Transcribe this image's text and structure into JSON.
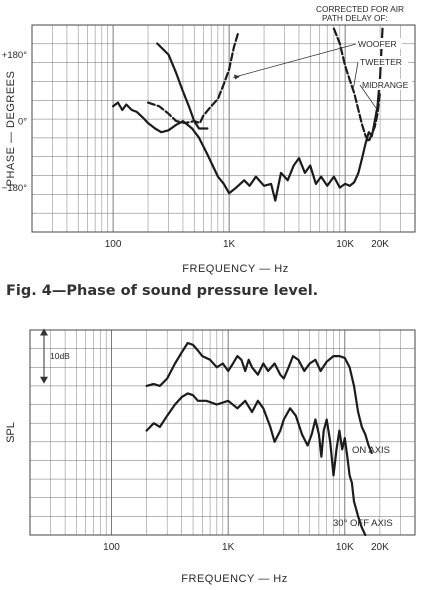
{
  "figure_caption": "Fig. 4—Phase of sound pressure level.",
  "chart_data": [
    {
      "type": "line",
      "title": "",
      "xlabel": "FREQUENCY — Hz",
      "ylabel": "PHASE — DEGREES",
      "x_scale": "log",
      "xlim": [
        20,
        40000
      ],
      "ylim": [
        -300,
        260
      ],
      "x_ticks": [
        {
          "value": 100,
          "label": "100"
        },
        {
          "value": 1000,
          "label": "1K"
        },
        {
          "value": 10000,
          "label": "10K"
        },
        {
          "value": 20000,
          "label": "20K"
        }
      ],
      "y_ticks": [
        {
          "value": 180,
          "label": "+180°"
        },
        {
          "value": 0,
          "label": "0°"
        },
        {
          "value": -180,
          "label": "−180°"
        }
      ],
      "grid": true,
      "annotations": [
        {
          "text": "CORRECTED FOR AIR"
        },
        {
          "text": "PATH DELAY OF:"
        },
        {
          "text": "WOOFER"
        },
        {
          "text": "TWEETER"
        },
        {
          "text": "MIDRANGE"
        }
      ],
      "series": [
        {
          "name": "WOOFER",
          "style": "solid",
          "points": [
            [
              100,
              40
            ],
            [
              110,
              50
            ],
            [
              120,
              30
            ],
            [
              130,
              45
            ],
            [
              145,
              30
            ],
            [
              160,
              25
            ],
            [
              180,
              10
            ],
            [
              200,
              -5
            ],
            [
              230,
              -20
            ],
            [
              260,
              -30
            ],
            [
              300,
              -25
            ],
            [
              350,
              -10
            ],
            [
              400,
              0
            ],
            [
              480,
              -20
            ],
            [
              550,
              -45
            ],
            [
              650,
              -90
            ],
            [
              800,
              -150
            ],
            [
              900,
              -170
            ],
            [
              1000,
              -195
            ],
            [
              1150,
              -180
            ],
            [
              1350,
              -160
            ],
            [
              1500,
              -175
            ],
            [
              1700,
              -150
            ],
            [
              2000,
              -175
            ],
            [
              2300,
              -170
            ],
            [
              2500,
              -215
            ],
            [
              2800,
              -140
            ],
            [
              3200,
              -160
            ],
            [
              3600,
              -120
            ],
            [
              4000,
              -100
            ],
            [
              4500,
              -140
            ],
            [
              5000,
              -120
            ],
            [
              5600,
              -170
            ],
            [
              6200,
              -150
            ],
            [
              7000,
              -175
            ],
            [
              8000,
              -150
            ],
            [
              9000,
              -180
            ],
            [
              10000,
              -170
            ],
            [
              11000,
              -175
            ],
            [
              12000,
              -165
            ],
            [
              13000,
              -140
            ],
            [
              14000,
              -100
            ],
            [
              15000,
              -60
            ],
            [
              16000,
              -30
            ],
            [
              17000,
              -40
            ],
            [
              18000,
              0
            ],
            [
              19000,
              40
            ],
            [
              20000,
              120
            ],
            [
              21000,
              250
            ]
          ]
        },
        {
          "name": "TWEETER",
          "style": "dashed",
          "points": [
            [
              8000,
              250
            ],
            [
              9000,
              210
            ],
            [
              10000,
              150
            ],
            [
              11000,
              110
            ],
            [
              12000,
              75
            ],
            [
              13000,
              30
            ],
            [
              14000,
              -10
            ],
            [
              15000,
              -40
            ],
            [
              16000,
              -55
            ],
            [
              17000,
              -35
            ],
            [
              18000,
              -15
            ],
            [
              19000,
              20
            ],
            [
              20000,
              80
            ]
          ]
        },
        {
          "name": "MIDRANGE",
          "style": "dashed",
          "points": [
            [
              200,
              50
            ],
            [
              250,
              40
            ],
            [
              300,
              20
            ],
            [
              350,
              0
            ],
            [
              420,
              -5
            ],
            [
              500,
              0
            ],
            [
              560,
              -5
            ],
            [
              600,
              15
            ],
            [
              700,
              40
            ],
            [
              800,
              60
            ],
            [
              900,
              100
            ],
            [
              1000,
              140
            ],
            [
              1100,
              200
            ],
            [
              1200,
              240
            ]
          ]
        },
        {
          "name": "",
          "style": "solid",
          "points": [
            [
              240,
              210
            ],
            [
              300,
              180
            ],
            [
              350,
              130
            ],
            [
              400,
              80
            ],
            [
              450,
              40
            ],
            [
              500,
              0
            ],
            [
              550,
              -20
            ],
            [
              650,
              -20
            ]
          ]
        }
      ]
    },
    {
      "type": "line",
      "title": "",
      "xlabel": "FREQUENCY — Hz",
      "ylabel": "SPL",
      "y_unit": "dB",
      "x_scale": "log",
      "xlim": [
        20,
        40000
      ],
      "ylim": [
        -45,
        10
      ],
      "scale_marker": "10dB",
      "x_ticks": [
        {
          "value": 100,
          "label": "100"
        },
        {
          "value": 1000,
          "label": "1K"
        },
        {
          "value": 10000,
          "label": "10K"
        },
        {
          "value": 20000,
          "label": "20K"
        }
      ],
      "grid": true,
      "series": [
        {
          "name": "ON AXIS",
          "points": [
            [
              200,
              -5
            ],
            [
              230,
              -4.5
            ],
            [
              260,
              -5
            ],
            [
              300,
              -3
            ],
            [
              350,
              1
            ],
            [
              400,
              4
            ],
            [
              450,
              6.5
            ],
            [
              500,
              6
            ],
            [
              550,
              4.5
            ],
            [
              600,
              3
            ],
            [
              700,
              2
            ],
            [
              800,
              0
            ],
            [
              900,
              1
            ],
            [
              1000,
              -1
            ],
            [
              1100,
              1
            ],
            [
              1200,
              3
            ],
            [
              1300,
              2
            ],
            [
              1400,
              -1
            ],
            [
              1500,
              2
            ],
            [
              1600,
              0
            ],
            [
              1800,
              -2
            ],
            [
              2000,
              1
            ],
            [
              2200,
              -1
            ],
            [
              2500,
              1
            ],
            [
              2800,
              -2
            ],
            [
              3000,
              -3
            ],
            [
              3300,
              0
            ],
            [
              3600,
              3
            ],
            [
              4000,
              2
            ],
            [
              4500,
              -1
            ],
            [
              5000,
              1
            ],
            [
              5600,
              2
            ],
            [
              6200,
              -1
            ],
            [
              7000,
              1.5
            ],
            [
              8000,
              3
            ],
            [
              9000,
              3
            ],
            [
              10000,
              2.5
            ],
            [
              11000,
              0
            ],
            [
              12000,
              -5
            ],
            [
              13000,
              -12
            ],
            [
              14000,
              -16
            ],
            [
              15000,
              -18
            ],
            [
              16000,
              -21
            ],
            [
              17000,
              -23
            ]
          ]
        },
        {
          "name": "30° OFF AXIS",
          "points": [
            [
              200,
              -17
            ],
            [
              230,
              -15
            ],
            [
              260,
              -16
            ],
            [
              300,
              -13
            ],
            [
              350,
              -10
            ],
            [
              400,
              -8
            ],
            [
              450,
              -7
            ],
            [
              500,
              -7.5
            ],
            [
              550,
              -9
            ],
            [
              650,
              -9
            ],
            [
              800,
              -10
            ],
            [
              1000,
              -9
            ],
            [
              1200,
              -11
            ],
            [
              1400,
              -9
            ],
            [
              1600,
              -12
            ],
            [
              1800,
              -9
            ],
            [
              2000,
              -11
            ],
            [
              2300,
              -16
            ],
            [
              2500,
              -20
            ],
            [
              2800,
              -17
            ],
            [
              3000,
              -14
            ],
            [
              3400,
              -11
            ],
            [
              3800,
              -13
            ],
            [
              4300,
              -18
            ],
            [
              4800,
              -21
            ],
            [
              5200,
              -18
            ],
            [
              5600,
              -14
            ],
            [
              6000,
              -18
            ],
            [
              6300,
              -24
            ],
            [
              6600,
              -17
            ],
            [
              7000,
              -14
            ],
            [
              7500,
              -20
            ],
            [
              8000,
              -29
            ],
            [
              8500,
              -22
            ],
            [
              9000,
              -17
            ],
            [
              9500,
              -22
            ],
            [
              10000,
              -19
            ],
            [
              10500,
              -24
            ],
            [
              11000,
              -29
            ],
            [
              11500,
              -31
            ],
            [
              12000,
              -36
            ],
            [
              12500,
              -38
            ],
            [
              13000,
              -40
            ],
            [
              14000,
              -43
            ],
            [
              15000,
              -45
            ]
          ]
        }
      ]
    }
  ]
}
